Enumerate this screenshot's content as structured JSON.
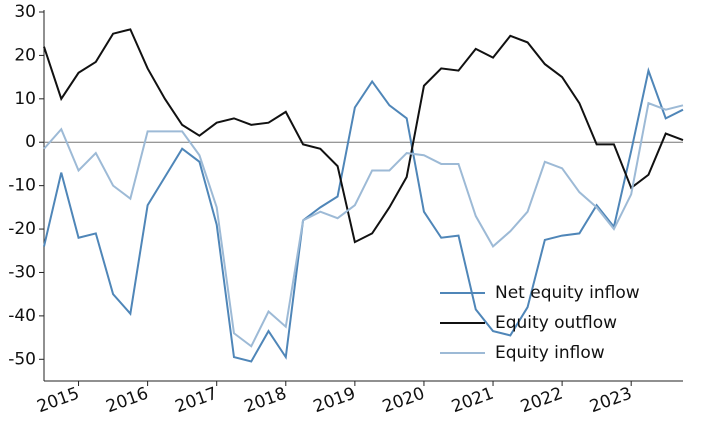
{
  "chart_data": {
    "type": "line",
    "x": [
      2014.5,
      2014.75,
      2015,
      2015.25,
      2015.5,
      2015.75,
      2016,
      2016.25,
      2016.5,
      2016.75,
      2017,
      2017.25,
      2017.5,
      2017.75,
      2018,
      2018.25,
      2018.5,
      2018.75,
      2019,
      2019.25,
      2019.5,
      2019.75,
      2020,
      2020.25,
      2020.5,
      2020.75,
      2021,
      2021.25,
      2021.5,
      2021.75,
      2022,
      2022.25,
      2022.5,
      2022.75,
      2023,
      2023.25,
      2023.5,
      2023.75
    ],
    "series": [
      {
        "name": "Net equity inflow",
        "color": "#4f86b8",
        "values": [
          -24,
          -7,
          -22,
          -21,
          -35,
          -39.5,
          -14.5,
          -8,
          -1.5,
          -4.5,
          -19,
          -49.5,
          -50.5,
          -43.5,
          -49.5,
          -18,
          -15,
          -12.5,
          8,
          14,
          8.5,
          5.5,
          -16,
          -22,
          -21.5,
          -38.5,
          -43.5,
          -44.5,
          -38,
          -22.5,
          -21.5,
          -21,
          -14.5,
          -19.5,
          -2,
          16.5,
          5.5,
          7.5
        ]
      },
      {
        "name": "Equity outflow",
        "color": "#111111",
        "values": [
          22,
          10,
          16,
          18.5,
          25,
          26,
          17,
          10,
          4,
          1.5,
          4.5,
          5.5,
          4,
          4.5,
          7,
          -0.5,
          -1.5,
          -5.5,
          -23,
          -21,
          -15,
          -8,
          13,
          17,
          16.5,
          21.5,
          19.5,
          24.5,
          23,
          18,
          15,
          9,
          -0.5,
          -0.5,
          -10.5,
          -7.5,
          2,
          0.5
        ]
      },
      {
        "name": "Equity inflow",
        "color": "#9dbad6",
        "values": [
          -1.5,
          3,
          -6.5,
          -2.5,
          -10,
          -13,
          2.5,
          2.5,
          2.5,
          -3,
          -15,
          -44,
          -47,
          -39,
          -42.5,
          -18,
          -16,
          -17.5,
          -14.5,
          -6.5,
          -6.5,
          -2.5,
          -3,
          -5,
          -5,
          -17,
          -24,
          -20.5,
          -16,
          -4.5,
          -6,
          -11.5,
          -15,
          -20,
          -12,
          9,
          7.5,
          8.5
        ]
      }
    ],
    "xlim": [
      2014.5,
      2023.75
    ],
    "xticks": [
      2015,
      2016,
      2017,
      2018,
      2019,
      2020,
      2021,
      2022,
      2023
    ],
    "ylim": [
      -55,
      30
    ],
    "yticks": [
      30,
      20,
      10,
      0,
      -10,
      -20,
      -30,
      -40,
      -50
    ],
    "zero_line": true,
    "legend": "lower right"
  }
}
